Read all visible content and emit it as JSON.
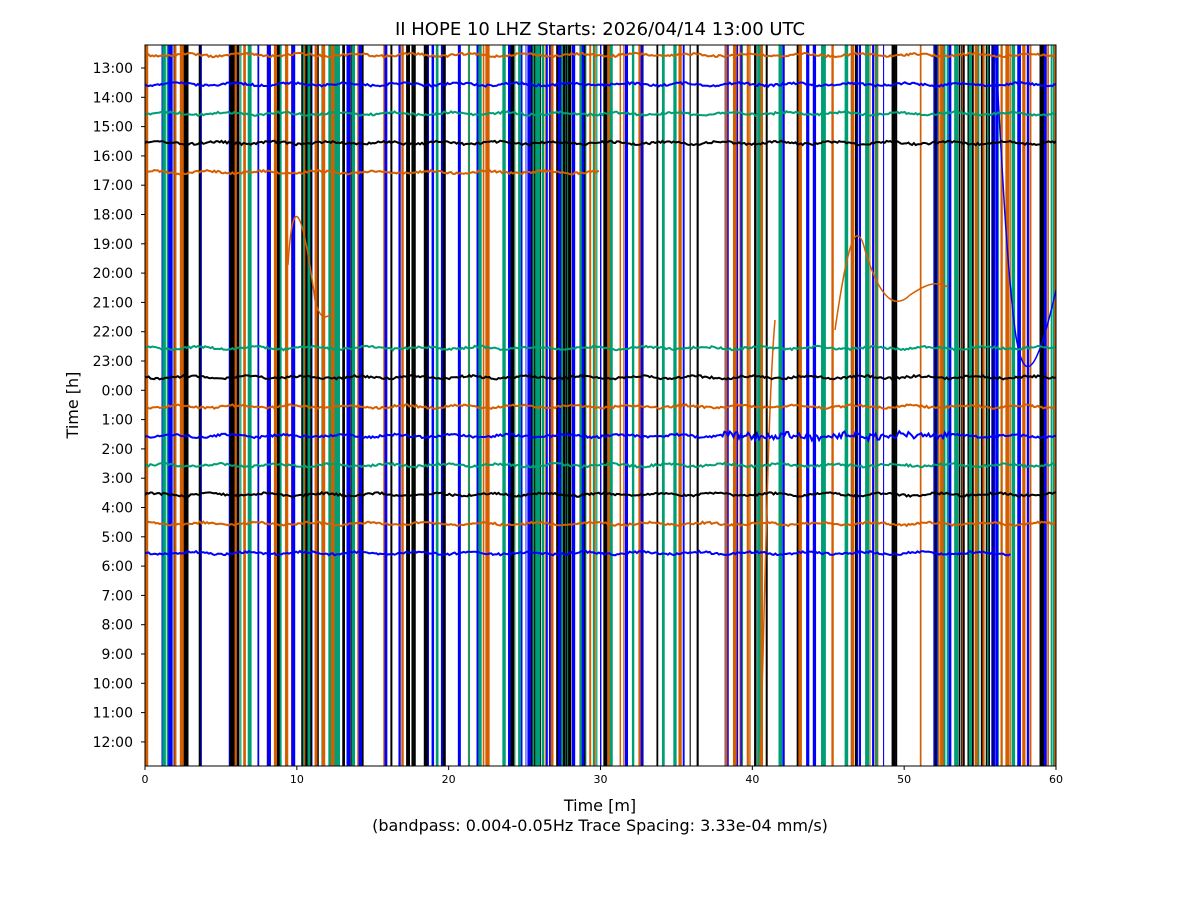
{
  "chart_data": {
    "type": "line",
    "title": "II HOPE 10 LHZ  Starts: 2026/04/14 13:00 UTC",
    "xlabel": "Time [m]",
    "ylabel": "Time [h]",
    "subtitle": "(bandpass: 0.004-0.05Hz  Trace Spacing: 3.33e-04 mm/s)",
    "xlim": [
      0,
      60
    ],
    "xticks": [
      "0",
      "10",
      "20",
      "30",
      "40",
      "50",
      "60"
    ],
    "yticks": [
      "13:00",
      "14:00",
      "15:00",
      "16:00",
      "17:00",
      "18:00",
      "19:00",
      "20:00",
      "21:00",
      "22:00",
      "23:00",
      "0:00",
      "1:00",
      "2:00",
      "3:00",
      "4:00",
      "5:00",
      "6:00",
      "7:00",
      "8:00",
      "9:00",
      "10:00",
      "11:00",
      "12:00"
    ],
    "color_cycle": [
      "#d55e00",
      "#0000ff",
      "#009e73",
      "#000000"
    ],
    "traces": [
      {
        "hour": "13:00",
        "start_min": 0,
        "end_min": 60
      },
      {
        "hour": "14:00",
        "start_min": 0,
        "end_min": 60
      },
      {
        "hour": "15:00",
        "start_min": 0,
        "end_min": 60
      },
      {
        "hour": "16:00",
        "start_min": 0,
        "end_min": 60
      },
      {
        "hour": "17:00",
        "start_min": 0,
        "end_min": 30
      },
      {
        "hour": "23:00",
        "start_min": 0,
        "end_min": 60
      },
      {
        "hour": "0:00",
        "start_min": 0,
        "end_min": 60
      },
      {
        "hour": "1:00",
        "start_min": 0,
        "end_min": 60
      },
      {
        "hour": "2:00",
        "start_min": 0,
        "end_min": 60
      },
      {
        "hour": "3:00",
        "start_min": 0,
        "end_min": 60
      },
      {
        "hour": "4:00",
        "start_min": 0,
        "end_min": 60
      },
      {
        "hour": "5:00",
        "start_min": 0,
        "end_min": 60
      },
      {
        "hour": "6:00",
        "start_min": 0,
        "end_min": 57
      }
    ]
  }
}
